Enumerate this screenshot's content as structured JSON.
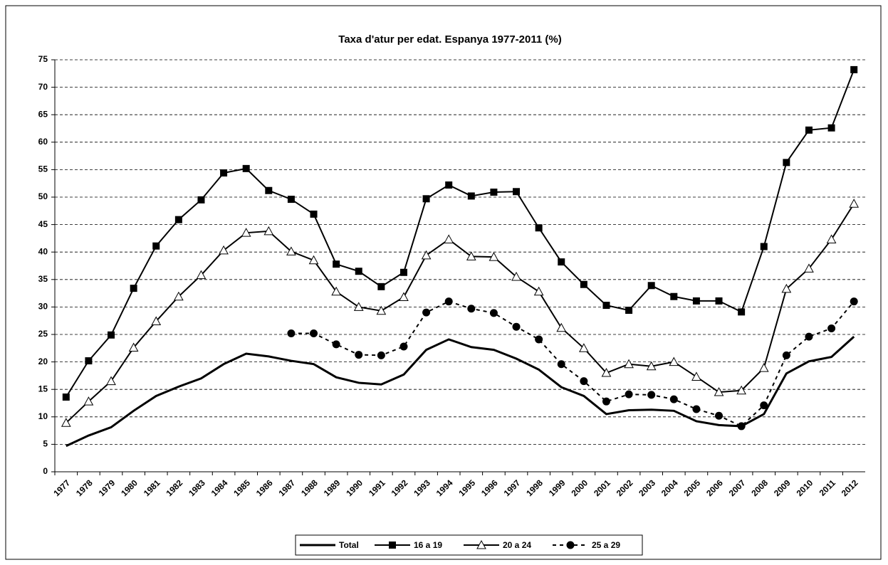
{
  "chart_data": {
    "type": "line",
    "title": "Taxa d'atur per edat. Espanya 1977-2011 (%)",
    "categories": [
      "1977",
      "1978",
      "1979",
      "1980",
      "1981",
      "1982",
      "1983",
      "1984",
      "1985",
      "1986",
      "1987",
      "1988",
      "1989",
      "1990",
      "1991",
      "1992",
      "1993",
      "1994",
      "1995",
      "1996",
      "1997",
      "1998",
      "1999",
      "2000",
      "2001",
      "2002",
      "2003",
      "2004",
      "2005",
      "2006",
      "2007",
      "2008",
      "2009",
      "2010",
      "2011",
      "2012"
    ],
    "series": [
      {
        "name": "Total",
        "color": "#000000",
        "marker": "none",
        "dash": false,
        "values": [
          4.7,
          6.6,
          8.1,
          11.1,
          13.8,
          15.5,
          17.0,
          19.6,
          21.5,
          21.0,
          20.2,
          19.6,
          17.2,
          16.2,
          15.9,
          17.7,
          22.2,
          24.1,
          22.7,
          22.2,
          20.6,
          18.6,
          15.4,
          13.8,
          10.5,
          11.2,
          11.3,
          11.1,
          9.2,
          8.5,
          8.3,
          10.5,
          17.9,
          20.1,
          20.9,
          24.6
        ]
      },
      {
        "name": "16 a 19",
        "color": "#000000",
        "marker": "square",
        "dash": false,
        "values": [
          13.6,
          20.2,
          24.9,
          33.4,
          41.1,
          45.9,
          49.5,
          54.4,
          55.2,
          51.2,
          49.6,
          46.9,
          37.8,
          36.5,
          33.7,
          36.3,
          49.7,
          52.2,
          50.2,
          50.9,
          51.0,
          44.4,
          38.2,
          34.1,
          30.3,
          29.4,
          33.9,
          31.9,
          31.1,
          31.1,
          29.1,
          41.0,
          56.3,
          62.2,
          62.6,
          73.2
        ]
      },
      {
        "name": "20 a 24",
        "color": "#000000",
        "marker": "triangle",
        "dash": false,
        "values": [
          8.9,
          12.8,
          16.5,
          22.6,
          27.4,
          31.9,
          35.8,
          40.3,
          43.5,
          43.8,
          40.1,
          38.5,
          32.8,
          30.0,
          29.3,
          31.8,
          39.4,
          42.3,
          39.2,
          39.1,
          35.5,
          32.8,
          26.2,
          22.5,
          18.0,
          19.6,
          19.2,
          20.0,
          17.3,
          14.5,
          14.8,
          18.9,
          33.3,
          37.0,
          42.3,
          48.8
        ]
      },
      {
        "name": "25 a 29",
        "color": "#000000",
        "marker": "circle",
        "dash": true,
        "values": [
          null,
          null,
          null,
          null,
          null,
          null,
          null,
          null,
          null,
          null,
          25.2,
          25.2,
          23.2,
          21.3,
          21.2,
          22.8,
          29.0,
          31.0,
          29.7,
          28.9,
          26.4,
          24.1,
          19.6,
          16.5,
          12.8,
          14.1,
          14.0,
          13.2,
          11.4,
          10.2,
          8.3,
          12.1,
          21.2,
          24.6,
          26.1,
          31.0
        ]
      }
    ],
    "ylim": [
      0,
      75
    ],
    "yticks": [
      0,
      5,
      10,
      15,
      20,
      25,
      30,
      35,
      40,
      45,
      50,
      55,
      60,
      65,
      70,
      75
    ],
    "grid": true,
    "legend": "bottom"
  }
}
